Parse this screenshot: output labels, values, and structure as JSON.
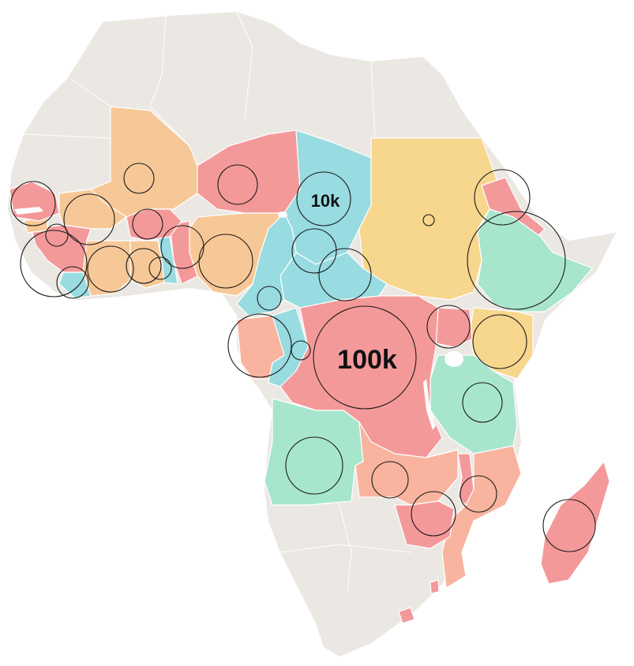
{
  "bubble_labels": {
    "small": "10k",
    "large": "100k"
  },
  "colors": {
    "land_other": "#ebe8e3",
    "salmon_red": "#f4999a",
    "light_salmon": "#f8b49e",
    "orange": "#f7c897",
    "yellow": "#f7d68d",
    "teal": "#98dbe0",
    "mint": "#a7e6cd",
    "bubble_stroke": "#1a1a1a",
    "water": "#ffffff"
  }
}
